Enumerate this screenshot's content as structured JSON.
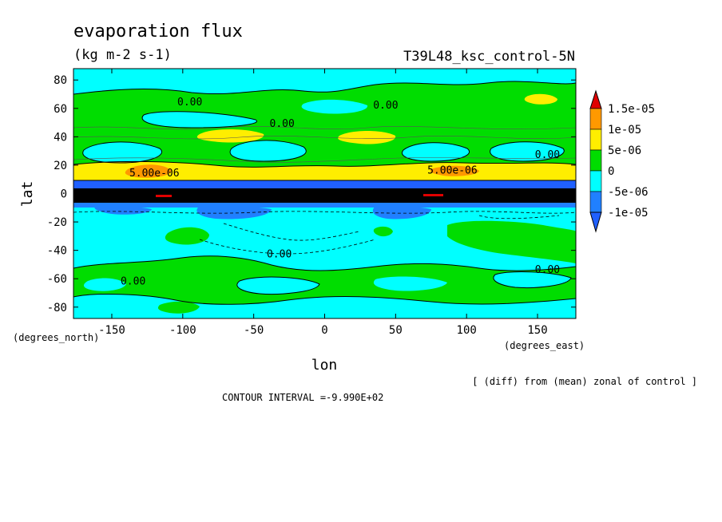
{
  "chart_data": {
    "type": "heatmap",
    "title": "evaporation flux",
    "subtitle": "(kg m-2 s-1)",
    "experiment": "T39L48_ksc_control-5N",
    "xlabel": "lon",
    "ylabel": "lat",
    "x_unit_label": "(degrees_east)",
    "y_unit_label": "(degrees_north)",
    "xlim": [
      -177,
      177
    ],
    "ylim": [
      -88,
      88
    ],
    "x_ticks": [
      -150,
      -100,
      -50,
      0,
      50,
      100,
      150
    ],
    "x_tick_labels": [
      "-150",
      "-100",
      "-50",
      "0",
      "50",
      "100",
      "150"
    ],
    "y_ticks": [
      80,
      60,
      40,
      20,
      0,
      -20,
      -40,
      -60,
      -80
    ],
    "y_tick_labels": [
      "80",
      "60",
      "40",
      "20",
      "0",
      "-20",
      "-40",
      "-60",
      "-80"
    ],
    "contour_interval": "CONTOUR INTERVAL =-9.990E+02",
    "note": "[ (diff) from (mean) zonal of control ]",
    "legend": {
      "placement": "right",
      "labels": [
        "1.5e-05",
        "1e-05",
        "5e-06",
        "0",
        "-5e-06",
        "-1e-05"
      ],
      "colors": [
        "#e00000",
        "#ff9900",
        "#ffee00",
        "#00dd00",
        "#00ffff",
        "#2080ff",
        "#2060ff"
      ]
    },
    "color_levels": {
      "gt_1.5e-05": "#e00000",
      "1e-05_to_1.5e-05": "#ff9900",
      "5e-06_to_1e-05": "#ffee00",
      "0_to_5e-06": "#00dd00",
      "-5e-06_to_0": "#00ffff",
      "lt_-5e-06": "#2080ff"
    },
    "contour_labels": [
      {
        "text": "0.00",
        "lon": -95,
        "lat": 62
      },
      {
        "text": "0.00",
        "lon": -30,
        "lat": 47
      },
      {
        "text": "0.00",
        "lon": 43,
        "lat": 60
      },
      {
        "text": "0.00",
        "lon": 157,
        "lat": 25
      },
      {
        "text": "5.00e-06",
        "lon": -120,
        "lat": 12
      },
      {
        "text": "5.00e-06",
        "lon": 90,
        "lat": 14
      },
      {
        "text": "0.00",
        "lon": -32,
        "lat": -45
      },
      {
        "text": "0.00",
        "lon": -135,
        "lat": -64
      },
      {
        "text": "0.00",
        "lon": 157,
        "lat": -56
      }
    ]
  }
}
